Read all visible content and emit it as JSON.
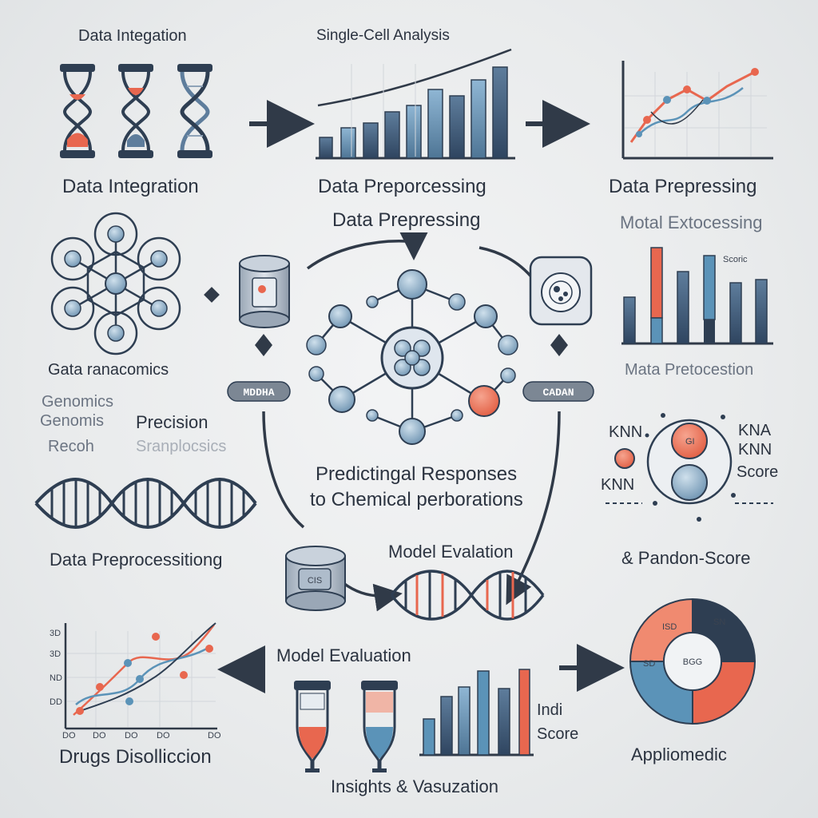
{
  "labels": {
    "top_left_title": "Data Integation",
    "top_mid_title": "Single-Cell Analysis",
    "row1_left": "Data Integration",
    "row1_mid": "Data Preporcessing",
    "row1_right": "Data Prepressing",
    "center_top": "Data Prepressing",
    "right_top": "Motal Extocessing",
    "right_chart_tag": "Scoric",
    "left_mid": "Gata ranacomics",
    "right_mid": "Mata Pretocestion",
    "left_genomics_1": "Genomics",
    "left_genomics_2": "Genomis",
    "left_precision": "Precision",
    "left_recoh": "Recoh",
    "left_faint": "Sranplocsics",
    "center_main_1": "Predictingal Responses",
    "center_main_2": "to Chemical perborations",
    "left_pill": "MDDHA",
    "right_pill": "CADAN",
    "knn_1": "KNN",
    "knn_2": "KNN",
    "knn_right_1": "KNA",
    "knn_right_2": "KNN",
    "knn_score": "Score",
    "left_bottom_prep": "Data Preprocessitiong",
    "center_model_eval": "Model Evalation",
    "random_score": "& Pandon-Score",
    "model_eval_2": "Model Evaluation",
    "drugs": "Drugs Disolliccion",
    "indi": "Indi",
    "score": "Score",
    "insights": "Insights & Vasuzation",
    "appliomedic": "Appliomedic",
    "cyl_label": "CIS",
    "donut_center": "BGG",
    "donut_seg_1": "ISD",
    "donut_seg_2": "SN",
    "donut_seg_3": "SD",
    "knn_inner": "GI",
    "chart_axis_labels": [
      "3D",
      "3D",
      "ND",
      "DD",
      "DO"
    ],
    "chart_x_labels": [
      "DO",
      "DO",
      "DO",
      "DO",
      "DO"
    ]
  },
  "colors": {
    "accent_red": "#e8674f",
    "accent_blue": "#5b93b8",
    "dark_navy": "#2e3e52",
    "grey_blue": "#8fa3b8",
    "line": "#303a48"
  }
}
